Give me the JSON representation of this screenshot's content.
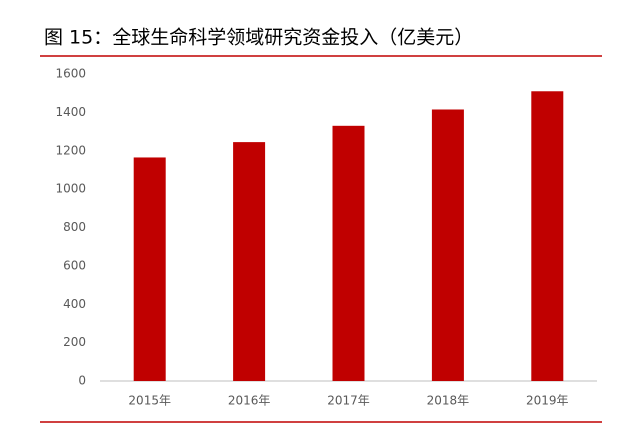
{
  "chart_data": {
    "type": "bar",
    "title": "图 15：全球生命科学领域研究资金投入（亿美元）",
    "categories": [
      "2015年",
      "2016年",
      "2017年",
      "2018年",
      "2019年"
    ],
    "values": [
      1165,
      1245,
      1330,
      1415,
      1510
    ],
    "color": "#c00000",
    "ylim": [
      0,
      1600
    ],
    "yticks": [
      0,
      200,
      400,
      600,
      800,
      1000,
      1200,
      1400,
      1600
    ],
    "grid": false
  }
}
